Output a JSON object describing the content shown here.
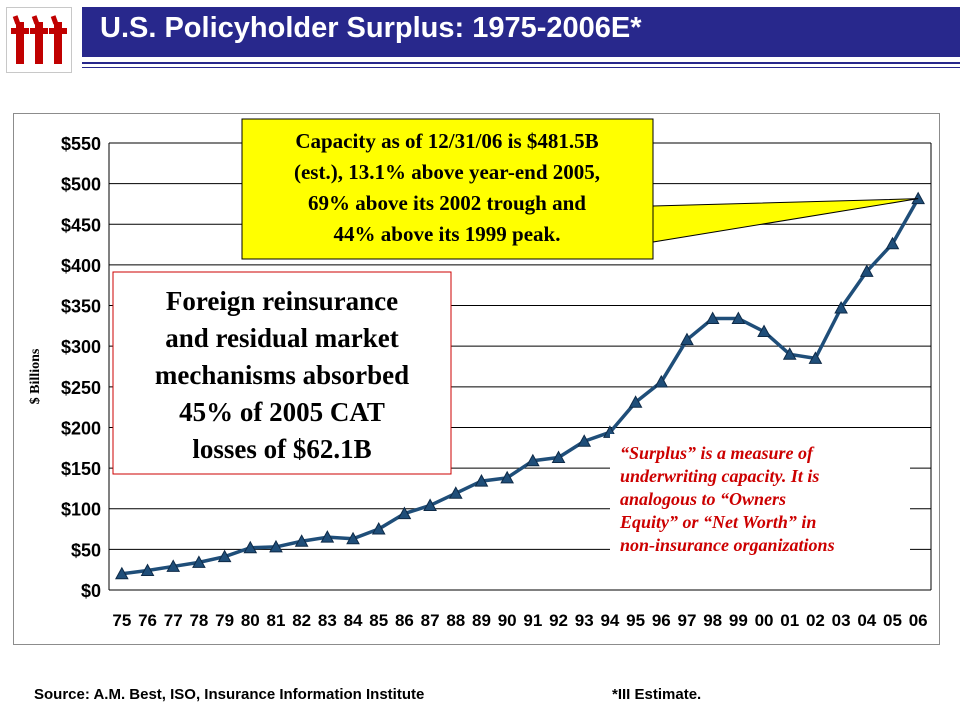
{
  "title": "U.S. Policyholder Surplus: 1975-2006E*",
  "source": "Source: A.M. Best, ISO, Insurance Information Institute",
  "footnote": "*III Estimate.",
  "colors": {
    "title_bar": "#28288c",
    "line": "#1f4e79",
    "logo": "#c00000",
    "callout_yellow": "#ffff00",
    "note_red": "#cc0000"
  },
  "chart_data": {
    "type": "line",
    "ylabel": "$ Billions",
    "xlabel": "",
    "ylim": [
      0,
      550
    ],
    "yticks": [
      "$0",
      "$50",
      "$100",
      "$150",
      "$200",
      "$250",
      "$300",
      "$350",
      "$400",
      "$450",
      "$500",
      "$550"
    ],
    "ytick_values": [
      0,
      50,
      100,
      150,
      200,
      250,
      300,
      350,
      400,
      450,
      500,
      550
    ],
    "grid": true,
    "categories": [
      "75",
      "76",
      "77",
      "78",
      "79",
      "80",
      "81",
      "82",
      "83",
      "84",
      "85",
      "86",
      "87",
      "88",
      "89",
      "90",
      "91",
      "92",
      "93",
      "94",
      "95",
      "96",
      "97",
      "98",
      "99",
      "00",
      "01",
      "02",
      "03",
      "04",
      "05",
      "06"
    ],
    "values": [
      20,
      24,
      29,
      34,
      41,
      52,
      53,
      60,
      65,
      63,
      75,
      94,
      104,
      119,
      134,
      138,
      159,
      163,
      183,
      194,
      231,
      256,
      308,
      334,
      334,
      318,
      290,
      285,
      347,
      392,
      426,
      481.5
    ],
    "annotations": {
      "callout": "Capacity as of 12/31/06 is $481.5B (est.), 13.1% above year-end 2005, 69% above its 2002 trough and 44% above its 1999 peak.",
      "reinsurance": "Foreign reinsurance and residual market mechanisms absorbed 45% of 2005 CAT losses of $62.1B",
      "surplus_note": "“Surplus” is a measure of underwriting capacity.  It is analogous to “Owners Equity” or “Net Worth” in non-insurance organizations"
    }
  }
}
